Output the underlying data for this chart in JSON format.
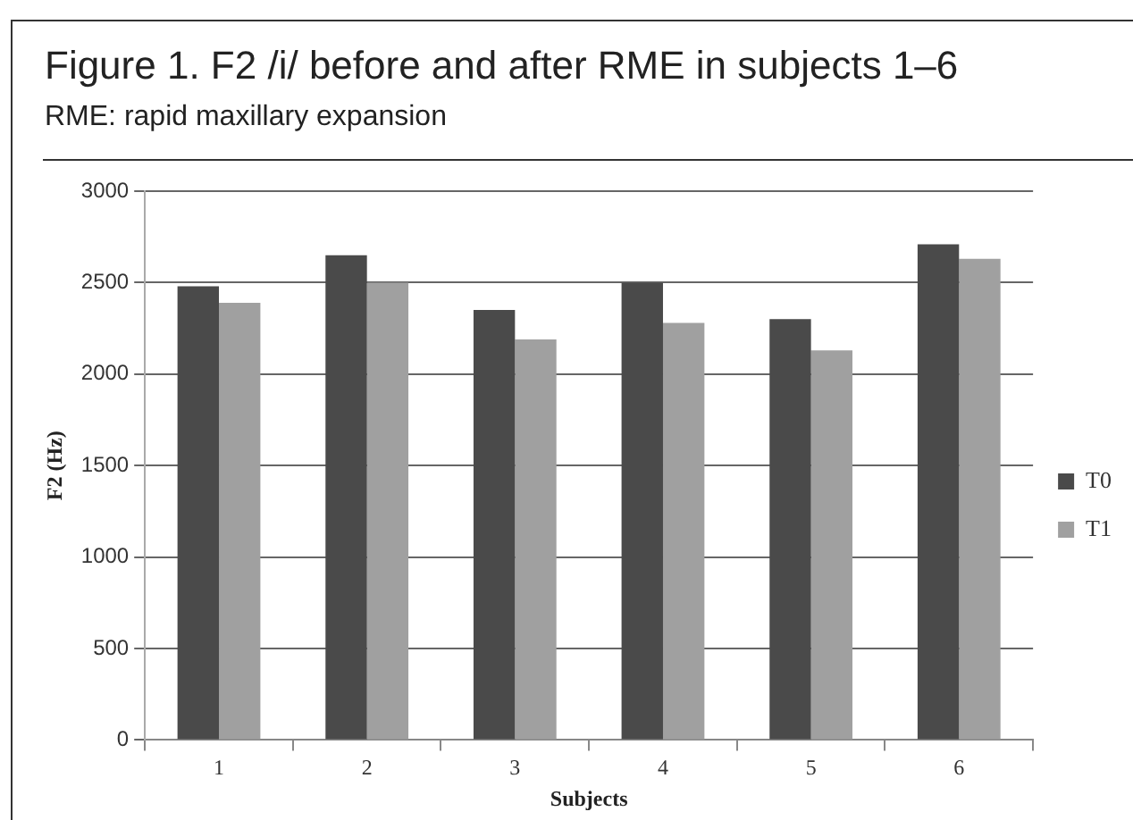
{
  "chart_data": {
    "type": "bar",
    "title": "Figure 1. F2 /i/ before and after RME in subjects 1–6",
    "subtitle": "RME: rapid maxillary expansion",
    "xlabel": "Subjects",
    "ylabel": "F2 (Hz)",
    "categories": [
      "1",
      "2",
      "3",
      "4",
      "5",
      "6"
    ],
    "series": [
      {
        "name": "T0",
        "color": "#4a4a4a",
        "values": [
          2480,
          2650,
          2350,
          2500,
          2300,
          2710
        ]
      },
      {
        "name": "T1",
        "color": "#a0a0a0",
        "values": [
          2390,
          2500,
          2190,
          2280,
          2130,
          2630
        ]
      }
    ],
    "ylim": [
      0,
      3000
    ],
    "yticks": [
      0,
      500,
      1000,
      1500,
      2000,
      2500,
      3000
    ],
    "grid": "y",
    "legend": "right"
  }
}
